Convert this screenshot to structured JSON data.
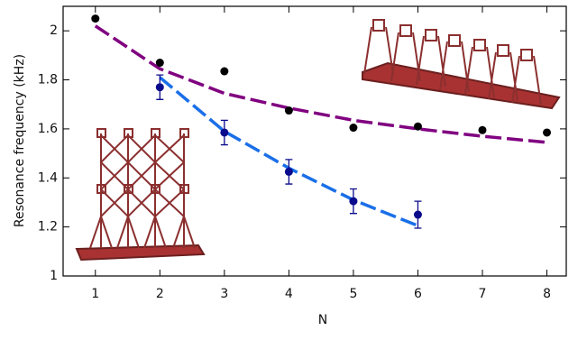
{
  "chart_data": {
    "type": "line",
    "x_label": "N",
    "y_label": "Resonance frequency (kHz)",
    "xlim": [
      0.5,
      8.3
    ],
    "ylim": [
      1,
      2.1
    ],
    "xticks": [
      1,
      2,
      3,
      4,
      5,
      6,
      7,
      8
    ],
    "yticks": [
      1,
      1.2,
      1.4,
      1.6,
      1.8,
      2
    ],
    "series": [
      {
        "style": "dashed",
        "color": "#800080",
        "x": [
          1,
          2,
          3,
          4,
          5,
          6,
          7,
          8
        ],
        "values": [
          2.02,
          1.845,
          1.745,
          1.685,
          1.635,
          1.6,
          1.57,
          1.545
        ]
      },
      {
        "style": "dashed",
        "color": "#1a6fe8",
        "x": [
          2,
          3,
          4,
          5,
          6
        ],
        "values": [
          1.81,
          1.59,
          1.44,
          1.31,
          1.205
        ]
      },
      {
        "style": "markers",
        "color": "#000000",
        "x": [
          1,
          2,
          3,
          4,
          5,
          6,
          7,
          8
        ],
        "values": [
          2.05,
          1.87,
          1.835,
          1.675,
          1.605,
          1.61,
          1.595,
          1.585
        ]
      },
      {
        "style": "markers",
        "color": "#0a0a8c",
        "x": [
          2,
          3,
          4,
          5,
          6
        ],
        "values": [
          1.77,
          1.585,
          1.425,
          1.305,
          1.25
        ],
        "errors": [
          0.05,
          0.05,
          0.05,
          0.05,
          0.055
        ]
      }
    ]
  }
}
